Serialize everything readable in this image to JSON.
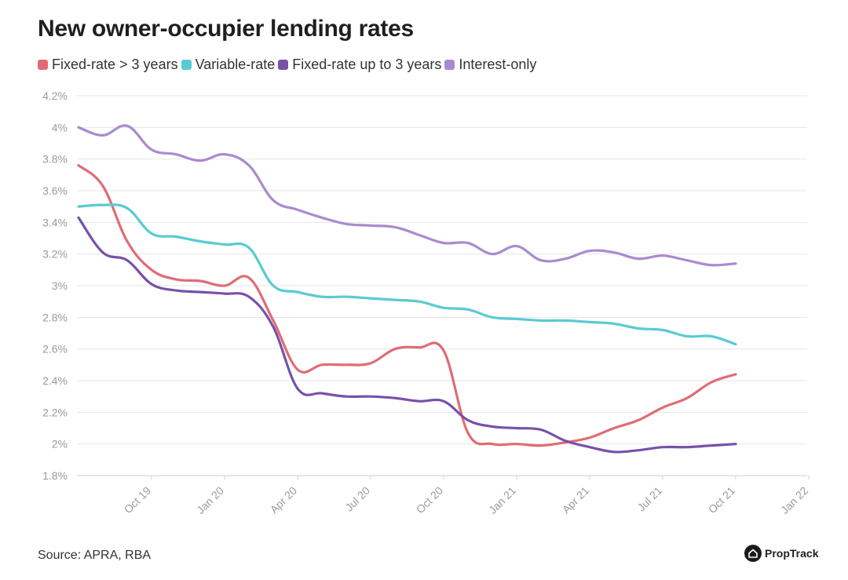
{
  "title": "New owner-occupier lending rates",
  "source": "Source: APRA, RBA",
  "brand": "PropTrack",
  "chart_data": {
    "type": "line",
    "title": "New owner-occupier lending rates",
    "xlabel": "",
    "ylabel": "",
    "ylim": [
      1.8,
      4.2
    ],
    "y_ticks": [
      "1.8%",
      "2%",
      "2.2%",
      "2.4%",
      "2.6%",
      "2.8%",
      "3%",
      "3.2%",
      "3.4%",
      "3.6%",
      "3.8%",
      "4%",
      "4.2%"
    ],
    "x_ticks": [
      "Oct 19",
      "Jan 20",
      "Apr 20",
      "Jul 20",
      "Oct 20",
      "Jan 21",
      "Apr 21",
      "Jul 21",
      "Oct 21",
      "Jan 22"
    ],
    "grid": true,
    "legend_position": "top-left",
    "x": [
      "2019-07",
      "2019-08",
      "2019-09",
      "2019-10",
      "2019-11",
      "2019-12",
      "2020-01",
      "2020-02",
      "2020-03",
      "2020-04",
      "2020-05",
      "2020-06",
      "2020-07",
      "2020-08",
      "2020-09",
      "2020-10",
      "2020-11",
      "2020-12",
      "2021-01",
      "2021-02",
      "2021-03",
      "2021-04",
      "2021-05",
      "2021-06",
      "2021-07",
      "2021-08",
      "2021-09",
      "2021-10",
      "2021-11"
    ],
    "series": [
      {
        "name": "Fixed-rate > 3 years",
        "color": "#e06c75",
        "values": [
          3.76,
          3.63,
          3.28,
          3.1,
          3.04,
          3.03,
          3.0,
          3.05,
          2.78,
          2.47,
          2.5,
          2.5,
          2.51,
          2.6,
          2.61,
          2.59,
          2.07,
          2.0,
          2.0,
          1.99,
          2.01,
          2.04,
          2.1,
          2.15,
          2.23,
          2.29,
          2.39,
          2.44,
          null
        ]
      },
      {
        "name": "Variable-rate",
        "color": "#58cbd2",
        "values": [
          3.5,
          3.51,
          3.49,
          3.33,
          3.31,
          3.28,
          3.26,
          3.24,
          3.0,
          2.96,
          2.93,
          2.93,
          2.92,
          2.91,
          2.9,
          2.86,
          2.85,
          2.8,
          2.79,
          2.78,
          2.78,
          2.77,
          2.76,
          2.73,
          2.72,
          2.68,
          2.68,
          2.63,
          null
        ]
      },
      {
        "name": "Fixed-rate up to 3 years",
        "color": "#7851a9",
        "values": [
          3.43,
          3.21,
          3.16,
          3.01,
          2.97,
          2.96,
          2.95,
          2.93,
          2.74,
          2.35,
          2.32,
          2.3,
          2.3,
          2.29,
          2.27,
          2.27,
          2.15,
          2.11,
          2.1,
          2.09,
          2.02,
          1.98,
          1.95,
          1.96,
          1.98,
          1.98,
          1.99,
          2.0,
          null
        ]
      },
      {
        "name": "Interest-only",
        "color": "#a98bcf",
        "values": [
          4.0,
          3.95,
          4.01,
          3.86,
          3.83,
          3.79,
          3.83,
          3.76,
          3.54,
          3.48,
          3.43,
          3.39,
          3.38,
          3.37,
          3.32,
          3.27,
          3.27,
          3.2,
          3.25,
          3.16,
          3.17,
          3.22,
          3.21,
          3.17,
          3.19,
          3.16,
          3.13,
          3.14,
          null
        ]
      }
    ]
  }
}
